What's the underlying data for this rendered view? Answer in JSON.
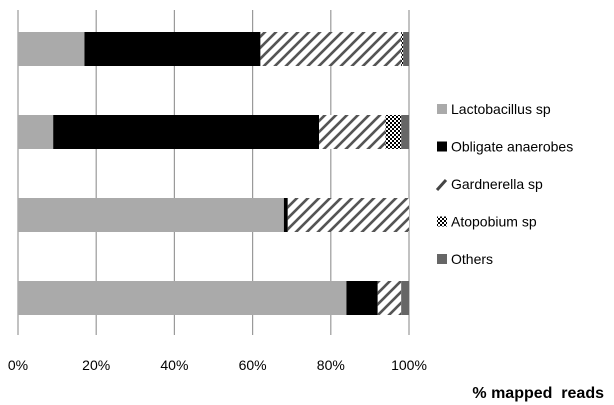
{
  "chart_data": {
    "type": "bar",
    "orientation": "horizontal",
    "stacked": true,
    "xlabel": "% mapped  reads",
    "ylabel": "",
    "xlim": [
      0,
      100
    ],
    "grid": true,
    "legend_position": "right",
    "x_ticks": [
      "0%",
      "20%",
      "40%",
      "60%",
      "80%",
      "100%"
    ],
    "categories": [
      "",
      "",
      "",
      ""
    ],
    "series": [
      {
        "name": "Lactobacillus sp",
        "values": [
          17,
          9,
          68,
          84
        ],
        "color": "#aaaaaa",
        "pattern": "solid"
      },
      {
        "name": "Obligate anaerobes",
        "values": [
          45,
          68,
          1,
          8
        ],
        "color": "#000000",
        "pattern": "solid"
      },
      {
        "name": "Gardnerella sp",
        "values": [
          36,
          17,
          31,
          6
        ],
        "color": "#555555",
        "pattern": "hatch"
      },
      {
        "name": "Atopobium sp",
        "values": [
          0.5,
          4,
          0,
          0
        ],
        "color": "#000000",
        "pattern": "checker"
      },
      {
        "name": "Others",
        "values": [
          1.5,
          2,
          0,
          2
        ],
        "color": "#666666",
        "pattern": "solid"
      }
    ]
  }
}
